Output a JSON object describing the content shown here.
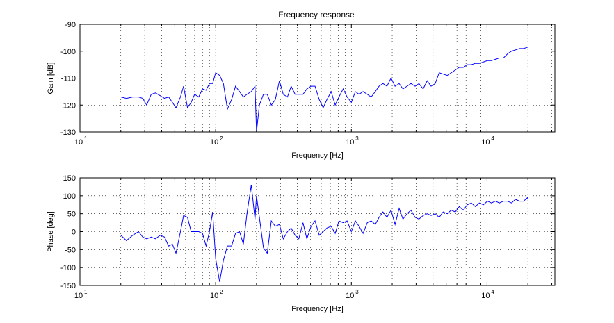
{
  "figure": {
    "title": "Frequency response"
  },
  "chart_data": [
    {
      "type": "line",
      "title": "Frequency response",
      "xlabel": "Frequency [Hz]",
      "ylabel": "Gain [dB]",
      "xscale": "log",
      "xlim": [
        10,
        31623
      ],
      "ylim": [
        -130,
        -90
      ],
      "x_ticks": [
        {
          "value": 10,
          "base": "10",
          "exp": "1"
        },
        {
          "value": 100,
          "base": "10",
          "exp": "2"
        },
        {
          "value": 1000,
          "base": "10",
          "exp": "3"
        },
        {
          "value": 10000,
          "base": "10",
          "exp": "4"
        }
      ],
      "y_ticks": [
        -130,
        -120,
        -110,
        -100,
        -90
      ],
      "grid": true,
      "grid_style": "dotted",
      "series": [
        {
          "color": "#0000ff",
          "x": [
            20,
            22,
            24.5,
            27,
            29,
            31,
            33.5,
            36,
            39,
            42,
            45,
            48,
            51,
            55,
            58,
            62,
            66,
            70,
            75,
            80,
            85,
            90,
            95,
            100,
            107,
            114,
            122,
            131,
            140,
            150,
            160,
            170,
            183,
            195,
            200,
            210,
            225,
            240,
            257,
            275,
            295,
            315,
            338,
            360,
            385,
            410,
            440,
            470,
            505,
            540,
            580,
            620,
            660,
            710,
            760,
            810,
            870,
            930,
            1000,
            1070,
            1140,
            1220,
            1310,
            1400,
            1500,
            1600,
            1710,
            1830,
            1960,
            2100,
            2250,
            2400,
            2570,
            2750,
            2950,
            3150,
            3380,
            3620,
            3870,
            4150,
            4440,
            4750,
            5090,
            5450,
            5830,
            6240,
            6680,
            7150,
            7660,
            8200,
            8780,
            9400,
            10060,
            10770,
            11530,
            12340,
            13210,
            14140,
            15140,
            16210,
            17350,
            18580,
            19890,
            20000
          ],
          "y": [
            -117,
            -117.5,
            -117,
            -117,
            -117.5,
            -120,
            -116,
            -115.5,
            -116.5,
            -117.5,
            -117,
            -119,
            -121,
            -117,
            -113,
            -121,
            -119,
            -116,
            -117,
            -114,
            -114.5,
            -112,
            -112,
            -108,
            -109,
            -112,
            -121.5,
            -118,
            -113,
            -115,
            -117,
            -116,
            -115,
            -113,
            -130,
            -120,
            -116,
            -116,
            -120,
            -118,
            -111,
            -116,
            -117,
            -113,
            -116,
            -116,
            -116,
            -114,
            -113,
            -113,
            -118,
            -121,
            -118,
            -115,
            -120,
            -117,
            -114,
            -117,
            -119,
            -115,
            -116,
            -115,
            -116,
            -117,
            -115,
            -113,
            -112,
            -113,
            -110,
            -113,
            -112,
            -114,
            -113,
            -112,
            -113,
            -112,
            -114,
            -111,
            -113,
            -112,
            -108,
            -108.5,
            -109,
            -108,
            -107,
            -106,
            -106,
            -105,
            -105,
            -104.5,
            -104.5,
            -104,
            -103.5,
            -103.5,
            -103,
            -102.5,
            -102.5,
            -101,
            -100,
            -99.5,
            -99,
            -99,
            -98.5,
            -98.5
          ]
        }
      ]
    },
    {
      "type": "line",
      "title": "",
      "xlabel": "Frequency [Hz]",
      "ylabel": "Phase [deg]",
      "xscale": "log",
      "xlim": [
        10,
        31623
      ],
      "ylim": [
        -150,
        150
      ],
      "x_ticks": [
        {
          "value": 10,
          "base": "10",
          "exp": "1"
        },
        {
          "value": 100,
          "base": "10",
          "exp": "2"
        },
        {
          "value": 1000,
          "base": "10",
          "exp": "3"
        },
        {
          "value": 10000,
          "base": "10",
          "exp": "4"
        }
      ],
      "y_ticks": [
        -150,
        -100,
        -50,
        0,
        50,
        100,
        150
      ],
      "grid": true,
      "grid_style": "dotted",
      "series": [
        {
          "color": "#0000ff",
          "x": [
            20,
            22,
            24.5,
            27,
            29,
            31,
            33.5,
            36,
            39,
            42,
            45,
            48,
            51,
            55,
            58,
            62,
            66,
            70,
            75,
            80,
            85,
            90,
            95,
            100,
            107,
            114,
            122,
            131,
            140,
            150,
            160,
            170,
            183,
            195,
            200,
            210,
            225,
            240,
            257,
            275,
            295,
            315,
            338,
            360,
            385,
            410,
            440,
            470,
            505,
            540,
            580,
            620,
            660,
            710,
            760,
            810,
            870,
            930,
            1000,
            1070,
            1140,
            1220,
            1310,
            1400,
            1500,
            1600,
            1710,
            1830,
            1960,
            2100,
            2250,
            2400,
            2570,
            2750,
            2950,
            3150,
            3380,
            3620,
            3870,
            4150,
            4440,
            4750,
            5090,
            5450,
            5830,
            6240,
            6680,
            7150,
            7660,
            8200,
            8780,
            9400,
            10060,
            10770,
            11530,
            12340,
            13210,
            14140,
            15140,
            16210,
            17350,
            18580,
            19890,
            20000
          ],
          "y": [
            -10,
            -25,
            -10,
            0,
            -15,
            -20,
            -15,
            -20,
            -10,
            -15,
            -40,
            -35,
            -60,
            0,
            45,
            40,
            0,
            0,
            0,
            -5,
            -40,
            0,
            55,
            -75,
            -140,
            -80,
            -40,
            -40,
            -5,
            0,
            -35,
            50,
            130,
            35,
            100,
            40,
            -45,
            -60,
            30,
            15,
            20,
            -20,
            0,
            10,
            -10,
            -20,
            25,
            -20,
            15,
            30,
            -10,
            0,
            10,
            15,
            -5,
            30,
            25,
            30,
            0,
            30,
            15,
            -5,
            25,
            30,
            20,
            40,
            55,
            40,
            60,
            20,
            65,
            35,
            50,
            60,
            40,
            35,
            45,
            50,
            45,
            50,
            40,
            55,
            50,
            60,
            55,
            70,
            60,
            75,
            80,
            70,
            80,
            75,
            85,
            80,
            85,
            80,
            85,
            85,
            80,
            90,
            85,
            85,
            95,
            90
          ]
        }
      ]
    }
  ]
}
